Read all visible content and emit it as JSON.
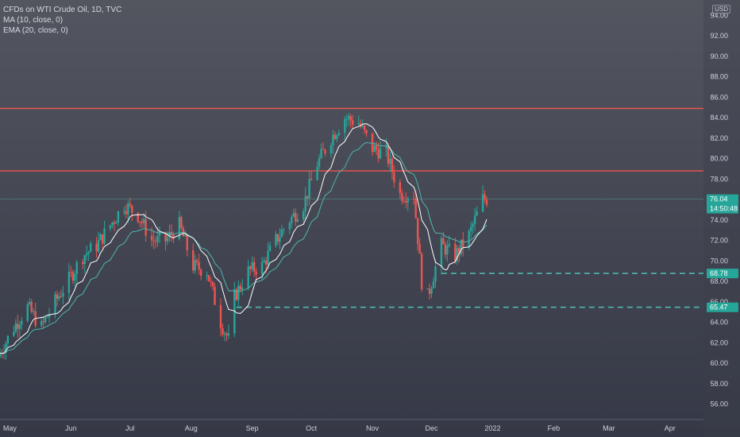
{
  "legend": {
    "title": "CFDs on WTI Crude Oil, 1D, TVC",
    "ma": "MA (10, close, 0)",
    "ema": "EMA (20, close, 0)"
  },
  "currency": "USD",
  "colors": {
    "up": "#26a69a",
    "down": "#ef5350",
    "resistance": "#ef5350",
    "support": "#4db6ac",
    "ma": "#ffffff",
    "ema": "#4db6ac",
    "price_badge": "#26a69a"
  },
  "chart_data": {
    "type": "candlestick",
    "symbol": "CFDs on WTI Crude Oil",
    "interval": "1D",
    "y_axis": {
      "range": [
        54.5,
        95.5
      ],
      "ticks": [
        "56.00",
        "58.00",
        "60.00",
        "62.00",
        "64.00",
        "66.00",
        "68.00",
        "70.00",
        "72.00",
        "74.00",
        "76.00",
        "78.00",
        "80.00",
        "82.00",
        "84.00",
        "86.00",
        "88.00",
        "90.00",
        "92.00",
        "94.00"
      ]
    },
    "x_axis": {
      "labels": [
        "May",
        "Jun",
        "Jul",
        "Aug",
        "Sep",
        "Oct",
        "Nov",
        "Dec",
        "2022",
        "Feb",
        "Mar",
        "Apr"
      ],
      "range": [
        "2021-04-26",
        "2022-04-18"
      ]
    },
    "horizontal_lines": [
      {
        "kind": "resistance",
        "price": 84.9,
        "style": "solid"
      },
      {
        "kind": "resistance",
        "price": 78.8,
        "style": "solid"
      },
      {
        "kind": "support",
        "price": 68.78,
        "style": "dashed",
        "from": "2021-12-06",
        "label": "68.78"
      },
      {
        "kind": "support",
        "price": 65.47,
        "style": "dashed",
        "from": "2021-08-24",
        "label": "65.47"
      }
    ],
    "last_price": {
      "value": "76.04",
      "countdown": "14:50:48"
    },
    "indicators": [
      {
        "name": "MA (10, close, 0)"
      },
      {
        "name": "EMA (20, close, 0)"
      }
    ],
    "closes": [
      {
        "date": "2021-04-26",
        "close": 61.0
      },
      {
        "date": "2021-05-03",
        "close": 63.5
      },
      {
        "date": "2021-05-10",
        "close": 65.5
      },
      {
        "date": "2021-05-17",
        "close": 63.5
      },
      {
        "date": "2021-05-24",
        "close": 66.0
      },
      {
        "date": "2021-06-01",
        "close": 68.5
      },
      {
        "date": "2021-06-07",
        "close": 70.5
      },
      {
        "date": "2021-06-14",
        "close": 71.5
      },
      {
        "date": "2021-06-21",
        "close": 73.5
      },
      {
        "date": "2021-06-28",
        "close": 75.5
      },
      {
        "date": "2021-07-05",
        "close": 74.5
      },
      {
        "date": "2021-07-12",
        "close": 72.0
      },
      {
        "date": "2021-07-19",
        "close": 72.0
      },
      {
        "date": "2021-07-26",
        "close": 73.5
      },
      {
        "date": "2021-08-02",
        "close": 69.5
      },
      {
        "date": "2021-08-09",
        "close": 69.0
      },
      {
        "date": "2021-08-16",
        "close": 64.0
      },
      {
        "date": "2021-08-20",
        "close": 62.3
      },
      {
        "date": "2021-08-23",
        "close": 66.5
      },
      {
        "date": "2021-08-30",
        "close": 69.0
      },
      {
        "date": "2021-09-06",
        "close": 69.5
      },
      {
        "date": "2021-09-13",
        "close": 72.0
      },
      {
        "date": "2021-09-20",
        "close": 74.0
      },
      {
        "date": "2021-09-27",
        "close": 75.5
      },
      {
        "date": "2021-10-04",
        "close": 79.5
      },
      {
        "date": "2021-10-11",
        "close": 82.0
      },
      {
        "date": "2021-10-18",
        "close": 84.0
      },
      {
        "date": "2021-10-25",
        "close": 83.5
      },
      {
        "date": "2021-11-01",
        "close": 81.0
      },
      {
        "date": "2021-11-08",
        "close": 80.5
      },
      {
        "date": "2021-11-15",
        "close": 76.5
      },
      {
        "date": "2021-11-22",
        "close": 76.5
      },
      {
        "date": "2021-11-26",
        "close": 68.0
      },
      {
        "date": "2021-11-29",
        "close": 66.5
      },
      {
        "date": "2021-12-06",
        "close": 71.5
      },
      {
        "date": "2021-12-13",
        "close": 70.5
      },
      {
        "date": "2021-12-20",
        "close": 72.5
      },
      {
        "date": "2021-12-27",
        "close": 76.04
      }
    ]
  }
}
